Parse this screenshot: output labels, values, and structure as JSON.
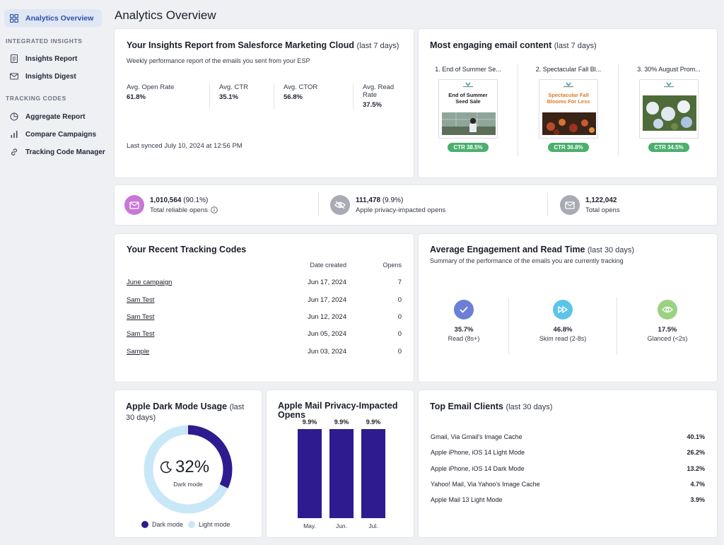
{
  "sidebar": {
    "active_item": "Analytics Overview",
    "section_integrated": "INTEGRATED INSIGHTS",
    "insights_report": "Insights Report",
    "insights_digest": "Insights Digest",
    "section_tracking": "TRACKING CODES",
    "aggregate_report": "Aggregate Report",
    "compare_campaigns": "Compare Campaigns",
    "tracking_code_manager": "Tracking Code Manager"
  },
  "page": {
    "title": "Analytics Overview"
  },
  "insights": {
    "title": "Your Insights Report from Salesforce Marketing Cloud",
    "period": "(last 7 days)",
    "subtitle": "Weekly performance report of the emails you sent from your ESP",
    "metrics": [
      {
        "label": "Avg. Open Rate",
        "value": "61.8%"
      },
      {
        "label": "Avg. CTR",
        "value": "35.1%"
      },
      {
        "label": "Avg. CTOR",
        "value": "56.8%"
      },
      {
        "label": "Avg. Read Rate",
        "value": "37.5%"
      }
    ],
    "synced": "Last synced July 10, 2024 at 12:56 PM"
  },
  "engaging": {
    "title": "Most engaging email content",
    "period": "(last 7 days)",
    "emails": [
      {
        "name": "1. End of Summer Se...",
        "headline_1": "End of Summer",
        "headline_2": "Seed Sale",
        "ctr": "CTR 38.5%"
      },
      {
        "name": "2. Spectacular Fall Bl...",
        "headline_1": "Spectacular Fall",
        "headline_2": "Blooms For Less",
        "ctr": "CTR 36.8%"
      },
      {
        "name": "3. 30% August Prom...",
        "ctr": "CTR 34.5%"
      }
    ]
  },
  "opens": {
    "reliable_value": "1,010,564",
    "reliable_pct": "(90.1%)",
    "reliable_label": "Total reliable opens",
    "privacy_value": "111,478",
    "privacy_pct": "(9.9%)",
    "privacy_label": "Apple privacy-impacted opens",
    "total_value": "1,122,042",
    "total_label": "Total opens"
  },
  "tracking": {
    "title": "Your Recent Tracking Codes",
    "col_date": "Date created",
    "col_opens": "Opens",
    "rows": [
      {
        "name": "June campaign",
        "date": "Jun 17, 2024",
        "opens": "7"
      },
      {
        "name": "Sam Test",
        "date": "Jun 17, 2024",
        "opens": "0"
      },
      {
        "name": "Sam Test",
        "date": "Jun 12, 2024",
        "opens": "0"
      },
      {
        "name": "Sam Test",
        "date": "Jun 05, 2024",
        "opens": "0"
      },
      {
        "name": "Sample",
        "date": "Jun 03, 2024",
        "opens": "0"
      }
    ]
  },
  "engagement": {
    "title": "Average Engagement and Read Time",
    "period": "(last 30 days)",
    "subtitle": "Summary of the performance of the emails you are currently tracking",
    "items": [
      {
        "value": "35.7%",
        "label": "Read (8s+)",
        "color": "#6b7fd4"
      },
      {
        "value": "46.8%",
        "label": "Skim read (2-8s)",
        "color": "#5bc4e8"
      },
      {
        "value": "17.5%",
        "label": "Glanced (<2s)",
        "color": "#9ad183"
      }
    ]
  },
  "darkmode": {
    "title": "Apple Dark Mode Usage",
    "period": "(last",
    "period2": "30 days)",
    "value": "32%",
    "value_number": 32,
    "caption": "Dark mode",
    "legend_dark": "Dark mode",
    "legend_light": "Light mode",
    "color_dark": "#2d1b8f",
    "color_light": "#c9e8f7"
  },
  "privacy_chart": {
    "title_1": "Apple Mail Privacy-Impacted",
    "title_2": "Opens"
  },
  "chart_data": {
    "type": "bar",
    "categories": [
      "May.",
      "Jun.",
      "Jul."
    ],
    "values": [
      9.9,
      9.9,
      9.9
    ],
    "value_labels": [
      "9.9%",
      "9.9%",
      "9.9%"
    ],
    "title": "Apple Mail Privacy-Impacted Opens",
    "ylim": [
      0,
      9.9
    ],
    "color": "#2d1b8f"
  },
  "clients": {
    "title": "Top Email Clients",
    "period": "(last 30 days)",
    "rows": [
      {
        "name": "Gmail, Via Gmail's Image Cache",
        "pct": "40.1%"
      },
      {
        "name": "Apple iPhone, iOS 14 Light Mode",
        "pct": "26.2%"
      },
      {
        "name": "Apple iPhone, iOS 14 Dark Mode",
        "pct": "13.2%"
      },
      {
        "name": "Yahoo! Mail, Via Yahoo's Image Cache",
        "pct": "4.7%"
      },
      {
        "name": "Apple Mail 13 Light Mode",
        "pct": "3.9%"
      }
    ]
  }
}
